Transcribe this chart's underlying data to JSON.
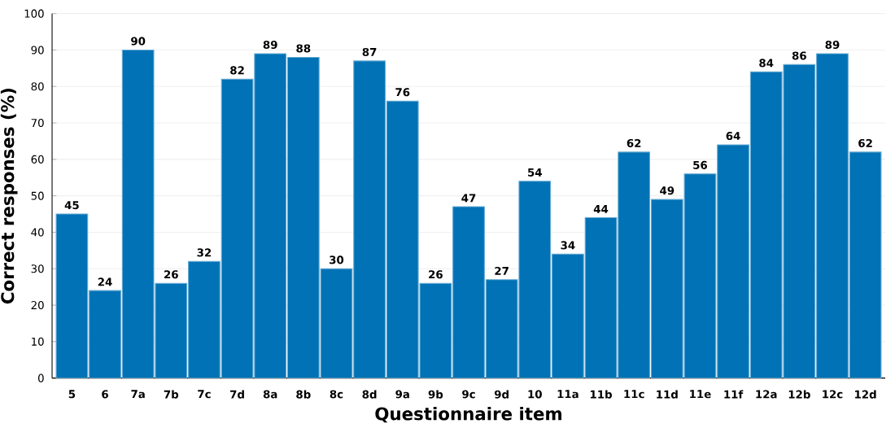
{
  "chart_data": {
    "type": "bar",
    "xlabel": "Questionnaire item",
    "ylabel": "Correct responses (%)",
    "categories": [
      "5",
      "6",
      "7a",
      "7b",
      "7c",
      "7d",
      "8a",
      "8b",
      "8c",
      "8d",
      "9a",
      "9b",
      "9c",
      "9d",
      "10",
      "11a",
      "11b",
      "11c",
      "11d",
      "11e",
      "11f",
      "12a",
      "12b",
      "12c",
      "12d"
    ],
    "values": [
      45,
      24,
      90,
      26,
      32,
      82,
      89,
      88,
      30,
      87,
      76,
      26,
      47,
      27,
      54,
      34,
      44,
      62,
      49,
      56,
      64,
      84,
      86,
      89,
      62
    ],
    "color": "#0072b5",
    "ylim": [
      0,
      100
    ],
    "yticks": [
      0,
      10,
      20,
      30,
      40,
      50,
      60,
      70,
      80,
      90,
      100
    ],
    "grid": "y",
    "data_labels": true
  }
}
